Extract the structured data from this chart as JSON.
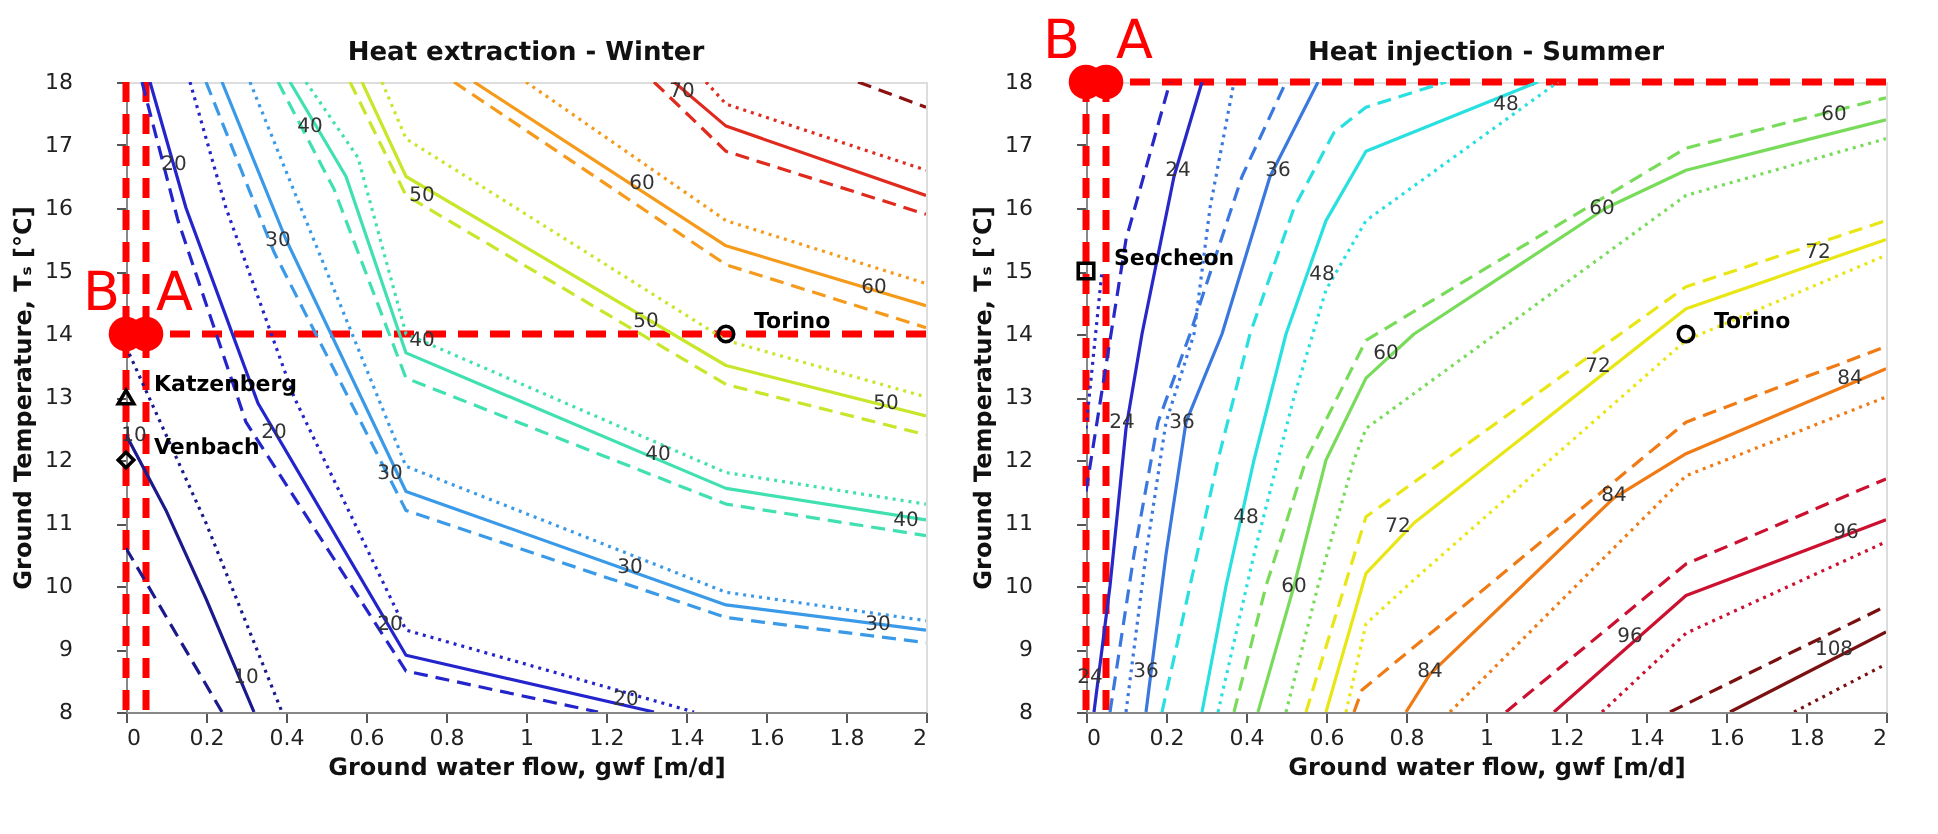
{
  "chart_data": [
    {
      "type": "line",
      "title": "Heat extraction - Winter",
      "xlabel": "Ground water flow, gwf [m/d]",
      "ylabel": "Ground Temperature, Tₛ [°C]",
      "xlim": [
        0,
        2
      ],
      "ylim": [
        8,
        18
      ],
      "xticks": [
        0,
        0.2,
        0.4,
        0.6,
        0.8,
        1,
        1.2,
        1.4,
        1.6,
        1.8,
        2
      ],
      "yticks": [
        8,
        9,
        10,
        11,
        12,
        13,
        14,
        15,
        16,
        17,
        18
      ],
      "grid": false,
      "series": [
        {
          "color": "#1a1a8c",
          "line_style": "solid",
          "x": [
            0,
            0.1,
            0.2,
            0.32
          ],
          "values": [
            12.4,
            11.2,
            9.8,
            8
          ]
        },
        {
          "color": "#1a1a8c",
          "line_style": "dashed",
          "x": [
            0,
            0.24
          ],
          "values": [
            10.6,
            8
          ]
        },
        {
          "color": "#1a1a8c",
          "line_style": "dotted",
          "x": [
            0,
            0.2,
            0.39
          ],
          "values": [
            13.8,
            11,
            8
          ]
        },
        {
          "color": "#2424cc",
          "line_style": "solid",
          "x": [
            0.06,
            0.15,
            0.33,
            0.7,
            1.32
          ],
          "values": [
            18,
            16,
            12.9,
            8.9,
            8
          ]
        },
        {
          "color": "#2424cc",
          "line_style": "dashed",
          "x": [
            0.04,
            0.13,
            0.3,
            0.7,
            1.18
          ],
          "values": [
            18,
            15.8,
            12.6,
            8.65,
            8
          ]
        },
        {
          "color": "#2424cc",
          "line_style": "dotted",
          "x": [
            0.16,
            0.25,
            0.42,
            0.7,
            1.42
          ],
          "values": [
            18,
            16,
            13,
            9.3,
            8
          ]
        },
        {
          "color": "#3a9ae8",
          "line_style": "solid",
          "x": [
            0.24,
            0.4,
            0.7,
            1.5,
            2
          ],
          "values": [
            18,
            15.5,
            11.5,
            9.7,
            9.3
          ]
        },
        {
          "color": "#3a9ae8",
          "line_style": "dashed",
          "x": [
            0.2,
            0.37,
            0.7,
            1.5,
            2
          ],
          "values": [
            18,
            15.3,
            11.2,
            9.5,
            9.1
          ]
        },
        {
          "color": "#3a9ae8",
          "line_style": "dotted",
          "x": [
            0.31,
            0.45,
            0.7,
            1.5,
            2
          ],
          "values": [
            18,
            15.8,
            11.9,
            9.9,
            9.45
          ]
        },
        {
          "color": "#40e0b0",
          "line_style": "solid",
          "x": [
            0.41,
            0.55,
            0.7,
            1.5,
            2
          ],
          "values": [
            18,
            16.5,
            13.7,
            11.55,
            11.05
          ]
        },
        {
          "color": "#40e0b0",
          "line_style": "dashed",
          "x": [
            0.38,
            0.52,
            0.7,
            1.5,
            2
          ],
          "values": [
            18,
            16.3,
            13.3,
            11.3,
            10.8
          ]
        },
        {
          "color": "#40e0b0",
          "line_style": "dotted",
          "x": [
            0.45,
            0.58,
            0.7,
            1.5,
            2
          ],
          "values": [
            18,
            16.8,
            14,
            11.8,
            11.3
          ]
        },
        {
          "color": "#c8e62a",
          "line_style": "solid",
          "x": [
            0.59,
            0.7,
            1.5,
            2
          ],
          "values": [
            18,
            16.5,
            13.5,
            12.7
          ]
        },
        {
          "color": "#c8e62a",
          "line_style": "dashed",
          "x": [
            0.56,
            0.7,
            1.5,
            2
          ],
          "values": [
            18,
            16.2,
            13.2,
            12.4
          ]
        },
        {
          "color": "#c8e62a",
          "line_style": "dotted",
          "x": [
            0.64,
            0.7,
            1.5,
            2
          ],
          "values": [
            18,
            17.1,
            13.9,
            13
          ]
        },
        {
          "color": "#f59a1a",
          "line_style": "solid",
          "x": [
            0.87,
            1.5,
            2
          ],
          "values": [
            18,
            15.4,
            14.45
          ]
        },
        {
          "color": "#f59a1a",
          "line_style": "dashed",
          "x": [
            0.82,
            1.5,
            2
          ],
          "values": [
            18,
            15.1,
            14.1
          ]
        },
        {
          "color": "#f59a1a",
          "line_style": "dotted",
          "x": [
            1,
            1.5,
            2
          ],
          "values": [
            18,
            15.8,
            14.8
          ]
        },
        {
          "color": "#e02a1e",
          "line_style": "solid",
          "x": [
            1.37,
            1.5,
            2
          ],
          "values": [
            18,
            17.3,
            16.2
          ]
        },
        {
          "color": "#e02a1e",
          "line_style": "dashed",
          "x": [
            1.32,
            1.5,
            2
          ],
          "values": [
            18,
            16.9,
            15.9
          ]
        },
        {
          "color": "#e02a1e",
          "line_style": "dotted",
          "x": [
            1.45,
            1.5,
            2
          ],
          "values": [
            18,
            17.65,
            16.6
          ]
        },
        {
          "color": "#8b1010",
          "line_style": "dashed",
          "x": [
            1.83,
            2
          ],
          "values": [
            18,
            17.6
          ]
        },
        {
          "type": "scatter",
          "name": "Torino",
          "color": "#000000",
          "marker": "circle",
          "x": [
            1.5
          ],
          "values": [
            14
          ]
        },
        {
          "type": "scatter",
          "name": "Katzenberg",
          "color": "#000000",
          "marker": "triangle",
          "x": [
            0
          ],
          "values": [
            13
          ]
        },
        {
          "type": "scatter",
          "name": "Venbach",
          "color": "#000000",
          "marker": "diamond",
          "x": [
            0
          ],
          "values": [
            12
          ]
        },
        {
          "type": "scatter",
          "color": "#ff0000",
          "marker": "circle",
          "x": [
            0,
            0.05
          ],
          "values": [
            14,
            14
          ]
        }
      ],
      "ref_lines": [
        {
          "axis": "x",
          "value": 0,
          "label": "B",
          "color": "#ff0000",
          "line_style": "dashed"
        },
        {
          "axis": "x",
          "value": 0.05,
          "label": "A",
          "color": "#ff0000",
          "line_style": "dashed"
        },
        {
          "axis": "y",
          "value": 14,
          "color": "#ff0000",
          "line_style": "dashed"
        }
      ],
      "annotations": [
        {
          "text": "10",
          "x": 0.02,
          "y": 12.4
        },
        {
          "text": "10",
          "x": 0.3,
          "y": 8.55
        },
        {
          "text": "20",
          "x": 0.12,
          "y": 16.7
        },
        {
          "text": "20",
          "x": 0.37,
          "y": 12.45
        },
        {
          "text": "20",
          "x": 0.66,
          "y": 9.4
        },
        {
          "text": "20",
          "x": 1.25,
          "y": 8.2
        },
        {
          "text": "30",
          "x": 0.38,
          "y": 15.5
        },
        {
          "text": "30",
          "x": 0.66,
          "y": 11.8
        },
        {
          "text": "30",
          "x": 1.26,
          "y": 10.3
        },
        {
          "text": "30",
          "x": 1.88,
          "y": 9.4
        },
        {
          "text": "40",
          "x": 0.46,
          "y": 17.3
        },
        {
          "text": "40",
          "x": 0.74,
          "y": 13.9
        },
        {
          "text": "40",
          "x": 1.33,
          "y": 12.1
        },
        {
          "text": "40",
          "x": 1.95,
          "y": 11.05
        },
        {
          "text": "50",
          "x": 0.74,
          "y": 16.2
        },
        {
          "text": "50",
          "x": 1.3,
          "y": 14.2
        },
        {
          "text": "50",
          "x": 1.9,
          "y": 12.9
        },
        {
          "text": "60",
          "x": 1.29,
          "y": 16.4
        },
        {
          "text": "60",
          "x": 1.87,
          "y": 14.75
        },
        {
          "text": "70",
          "x": 1.39,
          "y": 17.85
        }
      ]
    },
    {
      "type": "line",
      "title": "Heat injection - Summer",
      "xlabel": "Ground water flow, gwf [m/d]",
      "ylabel": "Ground Temperature, Tₛ [°C]",
      "xlim": [
        0,
        2
      ],
      "ylim": [
        8,
        18
      ],
      "xticks": [
        0,
        0.2,
        0.4,
        0.6,
        0.8,
        1,
        1.2,
        1.4,
        1.6,
        1.8,
        2
      ],
      "yticks": [
        8,
        9,
        10,
        11,
        12,
        13,
        14,
        15,
        16,
        17,
        18
      ],
      "grid": false,
      "series": [
        {
          "color": "#2828c8",
          "line_style": "solid",
          "x": [
            0.02,
            0.06,
            0.1,
            0.14,
            0.22,
            0.29
          ],
          "values": [
            8,
            10,
            12.5,
            14,
            16.5,
            18
          ]
        },
        {
          "color": "#2828c8",
          "line_style": "dashed",
          "x": [
            0,
            0.05,
            0.1,
            0.21
          ],
          "values": [
            11.5,
            13.5,
            15.5,
            18
          ]
        },
        {
          "color": "#2828c8",
          "line_style": "dotted",
          "x": [
            0,
            0.04
          ],
          "values": [
            12.5,
            15
          ]
        },
        {
          "color": "#3a78e0",
          "line_style": "solid",
          "x": [
            0.15,
            0.2,
            0.25,
            0.34,
            0.46,
            0.58
          ],
          "values": [
            8,
            10.5,
            12.6,
            14,
            16.5,
            18
          ]
        },
        {
          "color": "#3a78e0",
          "line_style": "dashed",
          "x": [
            0.06,
            0.12,
            0.18,
            0.26,
            0.39,
            0.5
          ],
          "values": [
            8,
            10.5,
            12.6,
            14,
            16.5,
            18
          ]
        },
        {
          "color": "#3a78e0",
          "line_style": "dotted",
          "x": [
            0.1,
            0.15,
            0.2,
            0.27,
            0.31,
            0.37
          ],
          "values": [
            8,
            10.5,
            12.6,
            14,
            16,
            18
          ]
        },
        {
          "color": "#28e0e0",
          "line_style": "solid",
          "x": [
            0.29,
            0.35,
            0.42,
            0.5,
            0.6,
            0.7,
            1.13
          ],
          "values": [
            8,
            10,
            12,
            14,
            15.8,
            16.9,
            18
          ]
        },
        {
          "color": "#28e0e0",
          "line_style": "dashed",
          "x": [
            0.19,
            0.26,
            0.33,
            0.41,
            0.52,
            0.62,
            0.7,
            0.9
          ],
          "values": [
            8,
            10,
            12,
            14,
            16,
            17.2,
            17.6,
            18
          ]
        },
        {
          "color": "#28e0e0",
          "line_style": "dotted",
          "x": [
            0.33,
            0.42,
            0.52,
            0.6,
            0.7,
            1.18
          ],
          "values": [
            8,
            10.5,
            13,
            14.7,
            15.8,
            18
          ]
        },
        {
          "color": "#78dc5a",
          "line_style": "solid",
          "x": [
            0.43,
            0.52,
            0.6,
            0.7,
            0.82,
            1.3,
            1.5,
            2
          ],
          "values": [
            8,
            10,
            12,
            13.3,
            14,
            16,
            16.6,
            17.4
          ]
        },
        {
          "color": "#78dc5a",
          "line_style": "dashed",
          "x": [
            0.37,
            0.45,
            0.55,
            0.7,
            1.5,
            2
          ],
          "values": [
            8,
            10,
            12,
            13.9,
            16.95,
            17.75
          ]
        },
        {
          "color": "#78dc5a",
          "line_style": "dotted",
          "x": [
            0.5,
            0.58,
            0.67,
            0.7,
            1.5,
            2
          ],
          "values": [
            8,
            10,
            12,
            12.5,
            16.2,
            17.1
          ]
        },
        {
          "color": "#e8e614",
          "line_style": "solid",
          "x": [
            0.6,
            0.7,
            0.82,
            1.5,
            2
          ],
          "values": [
            8,
            10.2,
            11,
            14.4,
            15.5
          ]
        },
        {
          "color": "#e8e614",
          "line_style": "dashed",
          "x": [
            0.55,
            0.7,
            1.5,
            2
          ],
          "values": [
            8,
            11.1,
            14.75,
            15.8
          ]
        },
        {
          "color": "#e8e614",
          "line_style": "dotted",
          "x": [
            0.65,
            0.7,
            0.82,
            1.5,
            2
          ],
          "values": [
            8,
            9.4,
            10.1,
            13.9,
            15.25
          ]
        },
        {
          "color": "#f07a14",
          "line_style": "solid",
          "x": [
            0.8,
            0.86,
            1.32,
            1.5,
            2
          ],
          "values": [
            8,
            8.6,
            11.4,
            12.1,
            13.45
          ]
        },
        {
          "color": "#f07a14",
          "line_style": "dashed",
          "x": [
            0.67,
            0.69,
            1.5,
            2
          ],
          "values": [
            8,
            8.35,
            12.6,
            13.8
          ]
        },
        {
          "color": "#f07a14",
          "line_style": "dotted",
          "x": [
            0.91,
            1.5,
            2
          ],
          "values": [
            8,
            11.75,
            13
          ]
        },
        {
          "color": "#cc1030",
          "line_style": "solid",
          "x": [
            1.17,
            1.5,
            2
          ],
          "values": [
            8,
            9.85,
            11.05
          ]
        },
        {
          "color": "#cc1030",
          "line_style": "dashed",
          "x": [
            1.05,
            1.5,
            2
          ],
          "values": [
            8,
            10.35,
            11.7
          ]
        },
        {
          "color": "#cc1030",
          "line_style": "dotted",
          "x": [
            1.29,
            1.5,
            2
          ],
          "values": [
            8,
            9.25,
            10.7
          ]
        },
        {
          "color": "#7a1010",
          "line_style": "solid",
          "x": [
            1.61,
            2
          ],
          "values": [
            8,
            9.27
          ]
        },
        {
          "color": "#7a1010",
          "line_style": "dashed",
          "x": [
            1.46,
            2
          ],
          "values": [
            8,
            9.68
          ]
        },
        {
          "color": "#7a1010",
          "line_style": "dotted",
          "x": [
            1.77,
            2
          ],
          "values": [
            8,
            8.76
          ]
        },
        {
          "type": "scatter",
          "name": "Seocheon",
          "color": "#000000",
          "marker": "square",
          "x": [
            0
          ],
          "values": [
            15
          ]
        },
        {
          "type": "scatter",
          "name": "Torino",
          "color": "#000000",
          "marker": "circle",
          "x": [
            1.5
          ],
          "values": [
            14
          ]
        },
        {
          "type": "scatter",
          "color": "#ff0000",
          "marker": "circle",
          "x": [
            0,
            0.05
          ],
          "values": [
            18,
            18
          ]
        }
      ],
      "ref_lines": [
        {
          "axis": "x",
          "value": 0,
          "label": "B",
          "color": "#ff0000",
          "line_style": "dashed"
        },
        {
          "axis": "x",
          "value": 0.05,
          "label": "A",
          "color": "#ff0000",
          "line_style": "dashed"
        },
        {
          "axis": "y",
          "value": 18,
          "color": "#ff0000",
          "line_style": "dashed"
        }
      ],
      "annotations": [
        {
          "text": "24",
          "x": 0.23,
          "y": 16.6
        },
        {
          "text": "24",
          "x": 0.09,
          "y": 12.6
        },
        {
          "text": "24",
          "x": 0.01,
          "y": 8.55
        },
        {
          "text": "36",
          "x": 0.48,
          "y": 16.6
        },
        {
          "text": "36",
          "x": 0.24,
          "y": 12.6
        },
        {
          "text": "36",
          "x": 0.15,
          "y": 8.65
        },
        {
          "text": "48",
          "x": 0.59,
          "y": 14.95
        },
        {
          "text": "48",
          "x": 0.4,
          "y": 11.1
        },
        {
          "text": "48",
          "x": 1.05,
          "y": 17.65
        },
        {
          "text": "60",
          "x": 0.75,
          "y": 13.7
        },
        {
          "text": "60",
          "x": 0.52,
          "y": 10
        },
        {
          "text": "60",
          "x": 1.29,
          "y": 16
        },
        {
          "text": "60",
          "x": 1.87,
          "y": 17.5
        },
        {
          "text": "72",
          "x": 0.78,
          "y": 10.95
        },
        {
          "text": "72",
          "x": 1.28,
          "y": 13.5
        },
        {
          "text": "72",
          "x": 1.83,
          "y": 15.3
        },
        {
          "text": "84",
          "x": 0.86,
          "y": 8.65
        },
        {
          "text": "84",
          "x": 1.32,
          "y": 11.45
        },
        {
          "text": "84",
          "x": 1.91,
          "y": 13.3
        },
        {
          "text": "96",
          "x": 1.36,
          "y": 9.2
        },
        {
          "text": "96",
          "x": 1.9,
          "y": 10.85
        },
        {
          "text": "108",
          "x": 1.87,
          "y": 9
        }
      ]
    }
  ]
}
